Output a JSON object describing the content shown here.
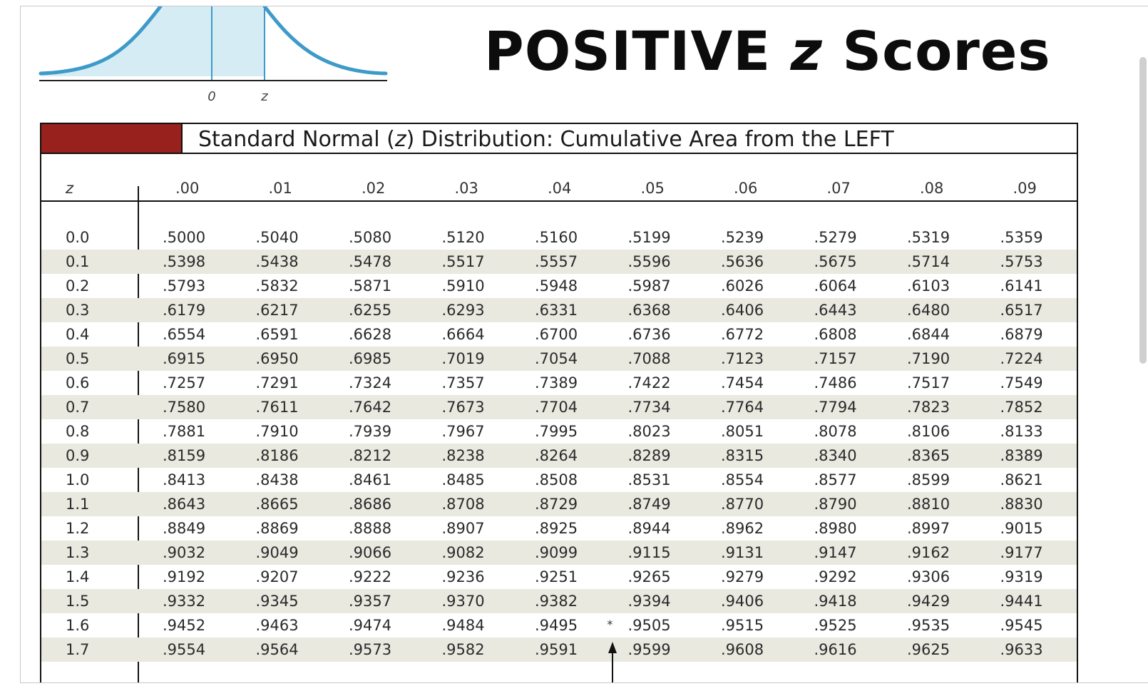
{
  "title": {
    "prefix": "POSITIVE ",
    "variable": "z",
    "suffix": " Scores"
  },
  "curve": {
    "tick_zero": "0",
    "tick_z": "z"
  },
  "table": {
    "caption": {
      "pre": "Standard Normal (",
      "var": "z",
      "post": ") Distribution: Cumulative Area from the LEFT"
    },
    "z_header": "z",
    "columns": [
      ".00",
      ".01",
      ".02",
      ".03",
      ".04",
      ".05",
      ".06",
      ".07",
      ".08",
      ".09"
    ],
    "rows": [
      {
        "z": "0.0",
        "values": [
          ".5000",
          ".5040",
          ".5080",
          ".5120",
          ".5160",
          ".5199",
          ".5239",
          ".5279",
          ".5319",
          ".5359"
        ]
      },
      {
        "z": "0.1",
        "values": [
          ".5398",
          ".5438",
          ".5478",
          ".5517",
          ".5557",
          ".5596",
          ".5636",
          ".5675",
          ".5714",
          ".5753"
        ]
      },
      {
        "z": "0.2",
        "values": [
          ".5793",
          ".5832",
          ".5871",
          ".5910",
          ".5948",
          ".5987",
          ".6026",
          ".6064",
          ".6103",
          ".6141"
        ]
      },
      {
        "z": "0.3",
        "values": [
          ".6179",
          ".6217",
          ".6255",
          ".6293",
          ".6331",
          ".6368",
          ".6406",
          ".6443",
          ".6480",
          ".6517"
        ]
      },
      {
        "z": "0.4",
        "values": [
          ".6554",
          ".6591",
          ".6628",
          ".6664",
          ".6700",
          ".6736",
          ".6772",
          ".6808",
          ".6844",
          ".6879"
        ]
      },
      {
        "z": "0.5",
        "values": [
          ".6915",
          ".6950",
          ".6985",
          ".7019",
          ".7054",
          ".7088",
          ".7123",
          ".7157",
          ".7190",
          ".7224"
        ]
      },
      {
        "z": "0.6",
        "values": [
          ".7257",
          ".7291",
          ".7324",
          ".7357",
          ".7389",
          ".7422",
          ".7454",
          ".7486",
          ".7517",
          ".7549"
        ]
      },
      {
        "z": "0.7",
        "values": [
          ".7580",
          ".7611",
          ".7642",
          ".7673",
          ".7704",
          ".7734",
          ".7764",
          ".7794",
          ".7823",
          ".7852"
        ]
      },
      {
        "z": "0.8",
        "values": [
          ".7881",
          ".7910",
          ".7939",
          ".7967",
          ".7995",
          ".8023",
          ".8051",
          ".8078",
          ".8106",
          ".8133"
        ]
      },
      {
        "z": "0.9",
        "values": [
          ".8159",
          ".8186",
          ".8212",
          ".8238",
          ".8264",
          ".8289",
          ".8315",
          ".8340",
          ".8365",
          ".8389"
        ]
      },
      {
        "z": "1.0",
        "values": [
          ".8413",
          ".8438",
          ".8461",
          ".8485",
          ".8508",
          ".8531",
          ".8554",
          ".8577",
          ".8599",
          ".8621"
        ]
      },
      {
        "z": "1.1",
        "values": [
          ".8643",
          ".8665",
          ".8686",
          ".8708",
          ".8729",
          ".8749",
          ".8770",
          ".8790",
          ".8810",
          ".8830"
        ]
      },
      {
        "z": "1.2",
        "values": [
          ".8849",
          ".8869",
          ".8888",
          ".8907",
          ".8925",
          ".8944",
          ".8962",
          ".8980",
          ".8997",
          ".9015"
        ]
      },
      {
        "z": "1.3",
        "values": [
          ".9032",
          ".9049",
          ".9066",
          ".9082",
          ".9099",
          ".9115",
          ".9131",
          ".9147",
          ".9162",
          ".9177"
        ]
      },
      {
        "z": "1.4",
        "values": [
          ".9192",
          ".9207",
          ".9222",
          ".9236",
          ".9251",
          ".9265",
          ".9279",
          ".9292",
          ".9306",
          ".9319"
        ]
      },
      {
        "z": "1.5",
        "values": [
          ".9332",
          ".9345",
          ".9357",
          ".9370",
          ".9382",
          ".9394",
          ".9406",
          ".9418",
          ".9429",
          ".9441"
        ]
      },
      {
        "z": "1.6",
        "values": [
          ".9452",
          ".9463",
          ".9474",
          ".9484",
          ".9495",
          ".9505",
          ".9515",
          ".9525",
          ".9535",
          ".9545"
        ]
      },
      {
        "z": "1.7",
        "values": [
          ".9554",
          ".9564",
          ".9573",
          ".9582",
          ".9591",
          ".9599",
          ".9608",
          ".9616",
          ".9625",
          ".9633"
        ]
      }
    ],
    "marker": "*"
  },
  "colors": {
    "accent": "#98201d",
    "curve_fill": "#d6ecf5",
    "curve_line": "#3d9ac9",
    "row_shade": "#e9e9e0"
  }
}
